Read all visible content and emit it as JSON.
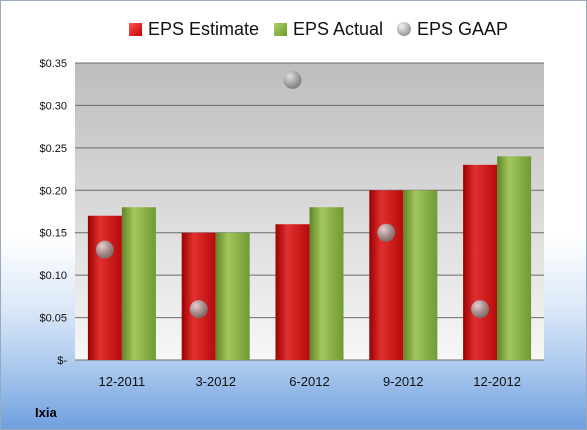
{
  "chart_data": {
    "type": "bar",
    "title": "",
    "xlabel": "",
    "ylabel": "",
    "categories": [
      "12-2011",
      "3-2012",
      "6-2012",
      "9-2012",
      "12-2012"
    ],
    "series": [
      {
        "name": "EPS Estimate",
        "type": "bar",
        "values": [
          0.17,
          0.15,
          0.16,
          0.2,
          0.23
        ]
      },
      {
        "name": "EPS Actual",
        "type": "bar",
        "values": [
          0.18,
          0.15,
          0.18,
          0.2,
          0.24
        ]
      },
      {
        "name": "EPS GAAP",
        "type": "scatter",
        "values": [
          0.13,
          0.06,
          0.33,
          0.15,
          0.06
        ]
      }
    ],
    "ylim": [
      0,
      0.35
    ],
    "yticks": [
      0,
      0.05,
      0.1,
      0.15,
      0.2,
      0.25,
      0.3,
      0.35
    ],
    "ytick_labels": [
      "$-",
      "$0.05",
      "$0.10",
      "$0.15",
      "$0.20",
      "$0.25",
      "$0.30",
      "$0.35"
    ],
    "grid": true,
    "legend_position": "top",
    "colors": {
      "estimate": "#d42020",
      "actual": "#8db04a",
      "gaap": "#a0a0a0"
    }
  },
  "legend": {
    "estimate_label": "EPS Estimate",
    "actual_label": "EPS Actual",
    "gaap_label": "EPS GAAP"
  },
  "company_label": "Ixia"
}
